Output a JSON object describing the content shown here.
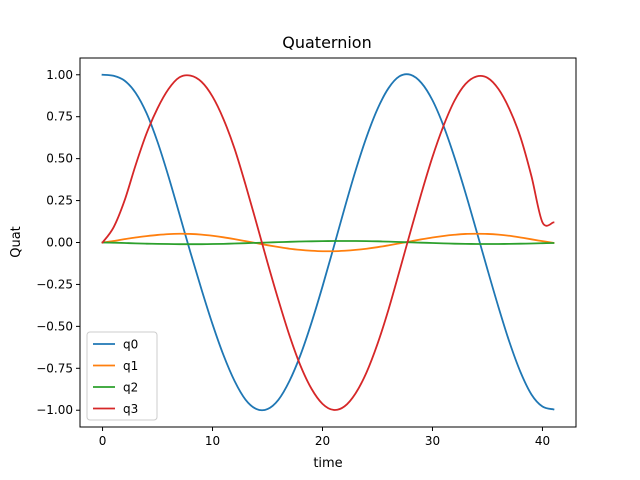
{
  "chart_data": {
    "type": "line",
    "title": "Quaternion",
    "xlabel": "time",
    "ylabel": "Quat",
    "xlim": [
      -2.05,
      43.05
    ],
    "ylim": [
      -1.1,
      1.1
    ],
    "xticks": [
      0,
      10,
      20,
      30,
      40
    ],
    "xtick_labels": [
      "0",
      "10",
      "20",
      "30",
      "40"
    ],
    "yticks": [
      -1.0,
      -0.75,
      -0.5,
      -0.25,
      0.0,
      0.25,
      0.5,
      0.75,
      1.0
    ],
    "ytick_labels": [
      "−1.00",
      "−0.75",
      "−0.50",
      "−0.25",
      "0.00",
      "0.25",
      "0.50",
      "0.75",
      "1.00"
    ],
    "grid": false,
    "legend_position": "lower-left",
    "series": [
      {
        "name": "q0",
        "color": "#1f77b4",
        "x": [
          0,
          1,
          2,
          3,
          4,
          5,
          6,
          7,
          8,
          9,
          10,
          11,
          12,
          13,
          14,
          15,
          16,
          17,
          18,
          19,
          20,
          21,
          22,
          23,
          24,
          25,
          26,
          27,
          28,
          29,
          30,
          31,
          32,
          33,
          34,
          35,
          36,
          37,
          38,
          39,
          40,
          41
        ],
        "values": [
          1.0,
          0.994,
          0.965,
          0.893,
          0.771,
          0.6,
          0.393,
          0.167,
          -0.061,
          -0.28,
          -0.487,
          -0.672,
          -0.825,
          -0.937,
          -0.993,
          -0.993,
          -0.937,
          -0.825,
          -0.67,
          -0.478,
          -0.262,
          -0.032,
          0.203,
          0.427,
          0.628,
          0.796,
          0.92,
          0.991,
          1.0,
          0.951,
          0.848,
          0.696,
          0.508,
          0.296,
          0.069,
          -0.161,
          -0.385,
          -0.594,
          -0.772,
          -0.906,
          -0.978,
          -0.995
        ]
      },
      {
        "name": "q1",
        "color": "#ff7f0e",
        "x": [
          0,
          1,
          2,
          3,
          4,
          5,
          6,
          7,
          8,
          9,
          10,
          11,
          12,
          13,
          14,
          15,
          16,
          17,
          18,
          19,
          20,
          21,
          22,
          23,
          24,
          25,
          26,
          27,
          28,
          29,
          30,
          31,
          32,
          33,
          34,
          35,
          36,
          37,
          38,
          39,
          40,
          41
        ],
        "values": [
          0.0,
          0.009,
          0.02,
          0.03,
          0.038,
          0.045,
          0.05,
          0.052,
          0.051,
          0.047,
          0.04,
          0.031,
          0.02,
          0.008,
          -0.004,
          -0.016,
          -0.027,
          -0.037,
          -0.044,
          -0.049,
          -0.052,
          -0.052,
          -0.049,
          -0.044,
          -0.037,
          -0.028,
          -0.017,
          -0.005,
          0.007,
          0.019,
          0.03,
          0.039,
          0.046,
          0.051,
          0.052,
          0.051,
          0.047,
          0.04,
          0.03,
          0.019,
          0.008,
          -0.002
        ]
      },
      {
        "name": "q2",
        "color": "#2ca02c",
        "x": [
          0,
          1,
          2,
          3,
          4,
          5,
          6,
          7,
          8,
          9,
          10,
          11,
          12,
          13,
          14,
          15,
          16,
          17,
          18,
          19,
          20,
          21,
          22,
          23,
          24,
          25,
          26,
          27,
          28,
          29,
          30,
          31,
          32,
          33,
          34,
          35,
          36,
          37,
          38,
          39,
          40,
          41
        ],
        "values": [
          0.0,
          -0.001,
          -0.003,
          -0.005,
          -0.007,
          -0.008,
          -0.009,
          -0.01,
          -0.01,
          -0.01,
          -0.009,
          -0.008,
          -0.006,
          -0.004,
          -0.002,
          0.0,
          0.002,
          0.004,
          0.006,
          0.007,
          0.008,
          0.009,
          0.009,
          0.009,
          0.008,
          0.007,
          0.005,
          0.003,
          0.001,
          -0.001,
          -0.003,
          -0.005,
          -0.007,
          -0.008,
          -0.009,
          -0.009,
          -0.009,
          -0.008,
          -0.007,
          -0.006,
          -0.004,
          -0.003
        ]
      },
      {
        "name": "q3",
        "color": "#d62728",
        "x": [
          0,
          1,
          2,
          3,
          4,
          5,
          6,
          7,
          8,
          9,
          10,
          11,
          12,
          13,
          14,
          15,
          16,
          17,
          18,
          19,
          20,
          21,
          22,
          23,
          24,
          25,
          26,
          27,
          28,
          29,
          30,
          31,
          32,
          33,
          34,
          35,
          36,
          37,
          38,
          39,
          40,
          41
        ],
        "values": [
          0.0,
          0.09,
          0.25,
          0.46,
          0.65,
          0.8,
          0.915,
          0.985,
          0.995,
          0.958,
          0.87,
          0.735,
          0.56,
          0.345,
          0.115,
          -0.12,
          -0.345,
          -0.555,
          -0.735,
          -0.872,
          -0.962,
          -0.998,
          -0.977,
          -0.9,
          -0.775,
          -0.605,
          -0.4,
          -0.17,
          0.065,
          0.295,
          0.51,
          0.695,
          0.845,
          0.945,
          0.99,
          0.982,
          0.915,
          0.795,
          0.628,
          0.395,
          0.12,
          0.12
        ]
      }
    ]
  }
}
